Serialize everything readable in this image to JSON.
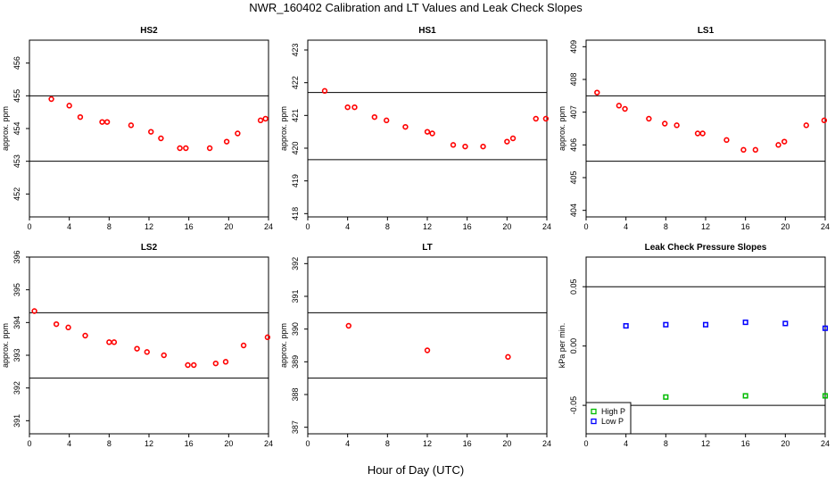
{
  "title": "NWR_160402  Calibration and LT Values and Leak Check Slopes",
  "xlabel": "Hour of Day (UTC)",
  "chart_data": [
    {
      "type": "scatter",
      "title": "HS2",
      "ylabel": "approx. ppm",
      "xlim": [
        0,
        24
      ],
      "ylim": [
        451.3,
        456.7
      ],
      "xticks": [
        "0",
        "4",
        "8",
        "12",
        "16",
        "20",
        "24"
      ],
      "yticks": [
        "452",
        "453",
        "454",
        "455",
        "456"
      ],
      "hlines": [
        455.0,
        453.0
      ],
      "series": [
        {
          "color": "#ff0000",
          "marker": "circle",
          "x": [
            2.2,
            4.0,
            5.1,
            7.3,
            7.8,
            10.2,
            12.2,
            13.2,
            15.1,
            15.7,
            18.1,
            19.8,
            20.9,
            23.2,
            23.7
          ],
          "y": [
            454.9,
            454.7,
            454.35,
            454.2,
            454.2,
            454.1,
            453.9,
            453.7,
            453.4,
            453.4,
            453.4,
            453.6,
            453.85,
            454.25,
            454.3
          ]
        }
      ]
    },
    {
      "type": "scatter",
      "title": "HS1",
      "ylabel": "approx. ppm",
      "xlim": [
        0,
        24
      ],
      "ylim": [
        417.9,
        423.3
      ],
      "xticks": [
        "0",
        "4",
        "8",
        "12",
        "16",
        "20",
        "24"
      ],
      "yticks": [
        "418",
        "419",
        "420",
        "421",
        "422",
        "423"
      ],
      "hlines": [
        421.7,
        419.65
      ],
      "series": [
        {
          "color": "#ff0000",
          "marker": "circle",
          "x": [
            1.7,
            4.0,
            4.7,
            6.7,
            7.9,
            9.8,
            12.0,
            12.5,
            14.6,
            15.8,
            17.6,
            20.0,
            20.6,
            22.9,
            23.9
          ],
          "y": [
            421.75,
            421.25,
            421.25,
            420.95,
            420.85,
            420.65,
            420.5,
            420.45,
            420.1,
            420.05,
            420.05,
            420.2,
            420.3,
            420.9,
            420.9
          ]
        }
      ]
    },
    {
      "type": "scatter",
      "title": "LS1",
      "ylabel": "approx. ppm",
      "xlim": [
        0,
        24
      ],
      "ylim": [
        403.8,
        409.2
      ],
      "xticks": [
        "0",
        "4",
        "8",
        "12",
        "16",
        "20",
        "24"
      ],
      "yticks": [
        "404",
        "405",
        "406",
        "407",
        "408",
        "409"
      ],
      "hlines": [
        407.5,
        405.5
      ],
      "series": [
        {
          "color": "#ff0000",
          "marker": "circle",
          "x": [
            1.1,
            3.3,
            3.9,
            6.3,
            7.9,
            9.1,
            11.2,
            11.7,
            14.1,
            15.8,
            17.0,
            19.3,
            19.9,
            22.1,
            23.9
          ],
          "y": [
            407.6,
            407.2,
            407.1,
            406.8,
            406.65,
            406.6,
            406.35,
            406.35,
            406.15,
            405.85,
            405.85,
            406.0,
            406.1,
            406.6,
            406.75
          ]
        }
      ]
    },
    {
      "type": "scatter",
      "title": "LS2",
      "ylabel": "approx. ppm",
      "xlim": [
        0,
        24
      ],
      "ylim": [
        390.6,
        396.0
      ],
      "xticks": [
        "0",
        "4",
        "8",
        "12",
        "16",
        "20",
        "24"
      ],
      "yticks": [
        "391",
        "392",
        "393",
        "394",
        "395",
        "396"
      ],
      "hlines": [
        394.3,
        392.3
      ],
      "series": [
        {
          "color": "#ff0000",
          "marker": "circle",
          "x": [
            0.5,
            2.7,
            3.9,
            5.6,
            8.0,
            8.5,
            10.8,
            11.8,
            13.5,
            15.9,
            16.5,
            18.7,
            19.7,
            21.5,
            23.9
          ],
          "y": [
            394.35,
            393.95,
            393.85,
            393.6,
            393.4,
            393.4,
            393.2,
            393.1,
            393.0,
            392.7,
            392.7,
            392.75,
            392.8,
            393.3,
            393.55
          ]
        }
      ]
    },
    {
      "type": "scatter",
      "title": "LT",
      "ylabel": "approx. ppm",
      "xlim": [
        0,
        24
      ],
      "ylim": [
        386.8,
        392.2
      ],
      "xticks": [
        "0",
        "4",
        "8",
        "12",
        "16",
        "20",
        "24"
      ],
      "yticks": [
        "387",
        "388",
        "389",
        "390",
        "391",
        "392"
      ],
      "hlines": [
        390.5,
        388.5
      ],
      "series": [
        {
          "color": "#ff0000",
          "marker": "circle",
          "x": [
            4.1,
            12.0,
            20.1
          ],
          "y": [
            390.1,
            389.35,
            389.15
          ]
        }
      ]
    },
    {
      "type": "scatter",
      "title": "Leak Check Pressure Slopes",
      "ylabel": "kPa per min.",
      "xlim": [
        0,
        24
      ],
      "ylim": [
        -0.074,
        0.075
      ],
      "xticks": [
        "0",
        "4",
        "8",
        "12",
        "16",
        "20",
        "24"
      ],
      "yticks": [
        "-0.05",
        "0.00",
        "0.05"
      ],
      "hlines": [
        0.05,
        -0.05
      ],
      "legend": {
        "position": "bottom-left",
        "entries": [
          "High P",
          "Low P"
        ]
      },
      "series": [
        {
          "name": "High P",
          "color": "#00bb00",
          "marker": "square",
          "x": [
            8.0,
            16.0,
            24.0
          ],
          "y": [
            -0.043,
            -0.042,
            -0.042
          ]
        },
        {
          "name": "Low P",
          "color": "#0000ff",
          "marker": "square",
          "x": [
            4.0,
            8.0,
            12.0,
            16.0,
            20.0,
            24.0
          ],
          "y": [
            0.017,
            0.018,
            0.018,
            0.02,
            0.019,
            0.015
          ]
        }
      ]
    }
  ]
}
